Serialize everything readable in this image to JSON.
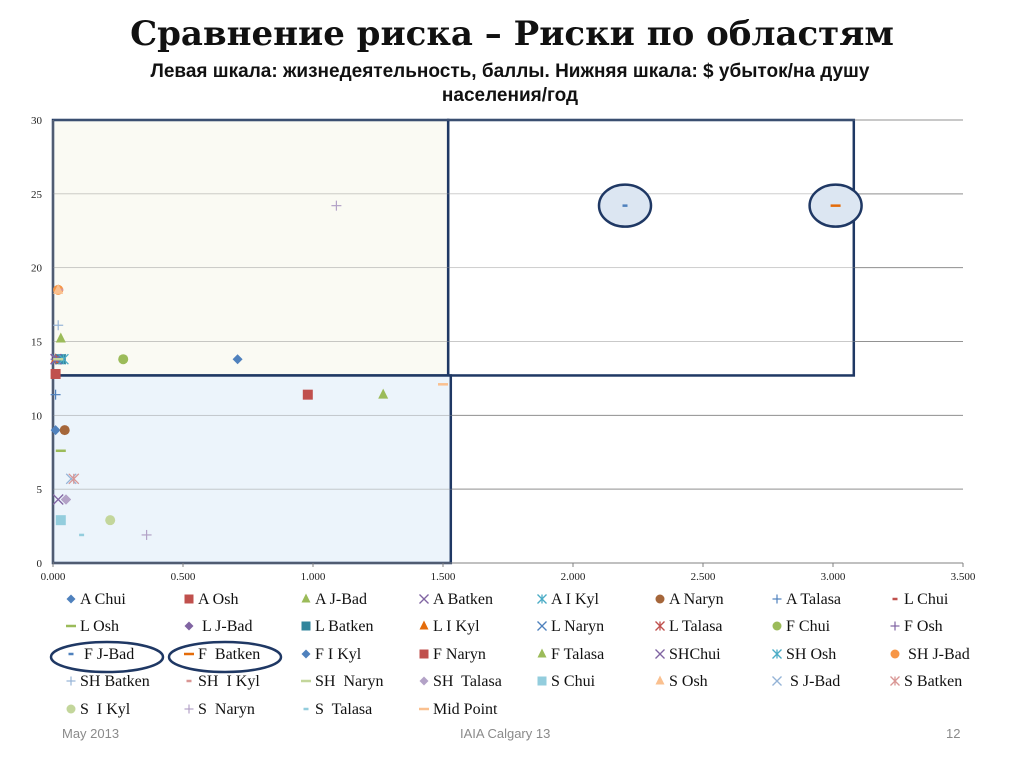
{
  "slide": {
    "title": "Сравнение риска – Риски по областям",
    "subtitle": "Левая шкала: жизнедеятельность, баллы. Нижняя шкала: $ убыток/на душу населения/год",
    "footer_left": "May 2013",
    "footer_center": "IAIA Calgary 13",
    "footer_right": "12"
  },
  "chart_data": {
    "type": "scatter",
    "title": "Сравнение риска – Риски по областям",
    "subtitle": "Левая шкала: жизнедеятельность, баллы. Нижняя шкала: $ убыток/на душу населения/год",
    "xlim": [
      0,
      3.5
    ],
    "ylim": [
      0,
      30
    ],
    "x_ticks": [
      "0.000",
      "0.500",
      "1.000",
      "1.500",
      "2.000",
      "2.500",
      "3.000",
      "3.500"
    ],
    "y_ticks": [
      "0",
      "5",
      "10",
      "15",
      "20",
      "25",
      "30"
    ],
    "grid": "horizontal",
    "legend_position": "bottom",
    "series": [
      {
        "name": "A Chui",
        "marker": "diamond",
        "color": "#4f81bd",
        "points": [
          [
            0.01,
            9.0
          ]
        ]
      },
      {
        "name": "A Osh",
        "marker": "square",
        "color": "#c0504d",
        "points": [
          [
            0.98,
            11.4
          ]
        ]
      },
      {
        "name": "A J-Bad",
        "marker": "triangle",
        "color": "#9bbb59",
        "points": [
          [
            1.27,
            11.4
          ]
        ]
      },
      {
        "name": "A Batken",
        "marker": "x",
        "color": "#8064a2",
        "points": [
          [
            0.02,
            4.3
          ]
        ]
      },
      {
        "name": "A I Kyl",
        "marker": "star",
        "color": "#4bacc6",
        "points": [
          [
            0.03,
            13.8
          ]
        ]
      },
      {
        "name": "A Naryn",
        "marker": "circle",
        "color": "#a5663a",
        "points": [
          [
            0.045,
            9.0
          ]
        ]
      },
      {
        "name": "A Talasa",
        "marker": "plus",
        "color": "#4f81bd",
        "points": [
          [
            0.01,
            11.4
          ]
        ]
      },
      {
        "name": "L Chui",
        "marker": "dash",
        "color": "#c0504d",
        "points": [
          [
            0.02,
            13.8
          ]
        ]
      },
      {
        "name": "L Osh",
        "marker": "longdash",
        "color": "#9bbb59",
        "points": [
          [
            0.03,
            7.6
          ]
        ]
      },
      {
        "name": " L J-Bad",
        "marker": "diamond",
        "color": "#8064a2",
        "points": [
          [
            0.05,
            4.3
          ]
        ]
      },
      {
        "name": "L Batken",
        "marker": "square",
        "color": "#31859c",
        "points": [
          [
            0.03,
            13.8
          ]
        ]
      },
      {
        "name": "L I Kyl",
        "marker": "triangle",
        "color": "#e46c0a",
        "points": [
          [
            0.01,
            13.8
          ]
        ]
      },
      {
        "name": "L Naryn",
        "marker": "x",
        "color": "#4f81bd",
        "points": [
          [
            0.015,
            13.8
          ]
        ]
      },
      {
        "name": "L Talasa",
        "marker": "star",
        "color": "#c0504d",
        "points": [
          [
            0.01,
            13.8
          ]
        ]
      },
      {
        "name": "F Chui",
        "marker": "circle",
        "color": "#9bbb59",
        "points": [
          [
            0.27,
            13.8
          ]
        ]
      },
      {
        "name": "F Osh",
        "marker": "plus",
        "color": "#8064a2",
        "points": [
          [
            0.01,
            13.8
          ]
        ]
      },
      {
        "name": " F J-Bad",
        "marker": "dash",
        "color": "#4f81bd",
        "points": [
          [
            2.2,
            24.2
          ]
        ],
        "highlighted": true
      },
      {
        "name": "F  Batken",
        "marker": "longdash",
        "color": "#e46c0a",
        "points": [
          [
            3.01,
            24.2
          ]
        ],
        "highlighted": true
      },
      {
        "name": "F I Kyl",
        "marker": "diamond",
        "color": "#4f81bd",
        "points": [
          [
            0.71,
            13.8
          ]
        ]
      },
      {
        "name": "F Naryn",
        "marker": "square",
        "color": "#c0504d",
        "points": [
          [
            0.01,
            12.8
          ]
        ]
      },
      {
        "name": "F Talasa",
        "marker": "triangle",
        "color": "#9bbb59",
        "points": [
          [
            0.03,
            15.2
          ]
        ]
      },
      {
        "name": "SHChui",
        "marker": "x",
        "color": "#8064a2",
        "points": [
          [
            0.01,
            13.8
          ]
        ]
      },
      {
        "name": "SH Osh",
        "marker": "star",
        "color": "#4bacc6",
        "points": [
          [
            0.04,
            13.8
          ]
        ]
      },
      {
        "name": " SH J-Bad",
        "marker": "circle",
        "color": "#f79646",
        "points": [
          [
            0.02,
            18.5
          ]
        ]
      },
      {
        "name": "SH Batken",
        "marker": "plus",
        "color": "#95b3d7",
        "points": [
          [
            0.02,
            16.1
          ]
        ]
      },
      {
        "name": "SH  I Kyl",
        "marker": "dash",
        "color": "#d99694",
        "points": [
          [
            0.03,
            18.5
          ]
        ]
      },
      {
        "name": "SH  Naryn",
        "marker": "longdash",
        "color": "#c3d69b",
        "points": [
          [
            0.02,
            13.8
          ]
        ]
      },
      {
        "name": "SH  Talasa",
        "marker": "diamond",
        "color": "#b3a2c7",
        "points": [
          [
            0.05,
            4.3
          ]
        ]
      },
      {
        "name": "S Chui",
        "marker": "square",
        "color": "#93cddd",
        "points": [
          [
            0.03,
            2.9
          ]
        ]
      },
      {
        "name": "S Osh",
        "marker": "triangle",
        "color": "#fac08f",
        "points": [
          [
            0.02,
            18.5
          ]
        ]
      },
      {
        "name": " S J-Bad",
        "marker": "x",
        "color": "#95b3d7",
        "points": [
          [
            0.07,
            5.7
          ]
        ]
      },
      {
        "name": "S Batken",
        "marker": "star",
        "color": "#d99694",
        "points": [
          [
            0.08,
            5.7
          ]
        ]
      },
      {
        "name": "S  I Kyl",
        "marker": "circle",
        "color": "#c3d69b",
        "points": [
          [
            0.22,
            2.9
          ]
        ]
      },
      {
        "name": "S  Naryn",
        "marker": "plus",
        "color": "#b3a2c7",
        "points": [
          [
            1.09,
            24.2
          ],
          [
            0.36,
            1.9
          ]
        ]
      },
      {
        "name": "S  Talasa",
        "marker": "dash",
        "color": "#93cddd",
        "points": [
          [
            0.11,
            1.9
          ]
        ]
      },
      {
        "name": "Mid Point",
        "marker": "longdash",
        "color": "#fac08f",
        "points": [
          [
            1.5,
            12.1
          ]
        ]
      }
    ],
    "regions": [
      {
        "name": "upper-left-zone",
        "x": [
          0,
          1.52
        ],
        "y": [
          12.7,
          30
        ],
        "fill": "#f9f9f1",
        "stroke": "#1f3864"
      },
      {
        "name": "upper-right-zone",
        "x": [
          1.52,
          3.08
        ],
        "y": [
          12.7,
          30
        ],
        "fill": "#ffffff",
        "stroke": "#1f3864"
      },
      {
        "name": "lower-left-zone",
        "x": [
          0,
          1.53
        ],
        "y": [
          0,
          12.7
        ],
        "fill": "#e9f2fa",
        "stroke": "#1f3864"
      }
    ]
  }
}
